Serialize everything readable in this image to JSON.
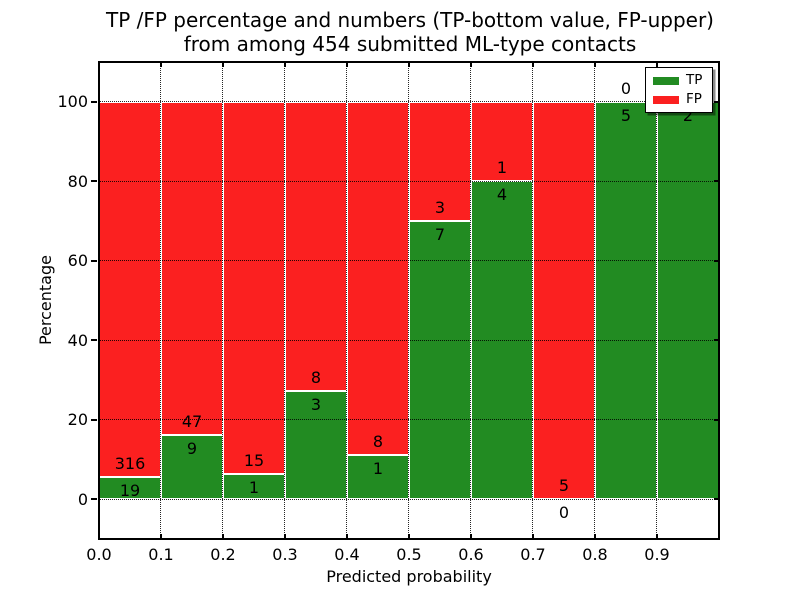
{
  "title": {
    "line1": "TP /FP percentage and numbers (TP-bottom value, FP-upper)",
    "line2": "from among 454 submitted ML-type contacts"
  },
  "chart_data": {
    "type": "bar",
    "stacked": true,
    "orientation": "vertical",
    "title_lines": [
      "TP /FP percentage and numbers (TP-bottom value, FP-upper)",
      "from among 454 submitted ML-type contacts"
    ],
    "xlabel": "Predicted probability",
    "ylabel": "Percentage",
    "categories": [
      "0.0-0.1",
      "0.1-0.2",
      "0.2-0.3",
      "0.3-0.4",
      "0.4-0.5",
      "0.5-0.6",
      "0.6-0.7",
      "0.7-0.8",
      "0.8-0.9",
      "0.9-1.0"
    ],
    "bin_edges": [
      0.0,
      0.1,
      0.2,
      0.3,
      0.4,
      0.5,
      0.6,
      0.7,
      0.8,
      0.9,
      1.0
    ],
    "series": [
      {
        "name": "TP",
        "color": "#228b22",
        "counts": [
          19,
          9,
          1,
          3,
          1,
          7,
          4,
          0,
          5,
          2
        ],
        "percent": [
          5.67,
          16.07,
          6.25,
          27.27,
          11.11,
          70.0,
          80.0,
          0.0,
          100.0,
          100.0
        ]
      },
      {
        "name": "FP",
        "color": "#fb2020",
        "counts": [
          316,
          47,
          15,
          8,
          8,
          3,
          1,
          5,
          0,
          0
        ],
        "percent": [
          94.33,
          83.93,
          93.75,
          72.73,
          88.89,
          30.0,
          20.0,
          100.0,
          0.0,
          0.0
        ]
      }
    ],
    "x_tick_labels": [
      "0.0",
      "0.1",
      "0.2",
      "0.3",
      "0.4",
      "0.5",
      "0.6",
      "0.7",
      "0.8",
      "0.9"
    ],
    "y_ticks": [
      0,
      20,
      40,
      60,
      80,
      100
    ],
    "xlim": [
      0.0,
      1.0
    ],
    "ylim": [
      -10,
      110
    ],
    "grid": "dotted black, drawn above bars",
    "bar_edge_color": "#ffffff",
    "legend": {
      "position": "upper right",
      "entries": [
        "TP",
        "FP"
      ]
    }
  }
}
